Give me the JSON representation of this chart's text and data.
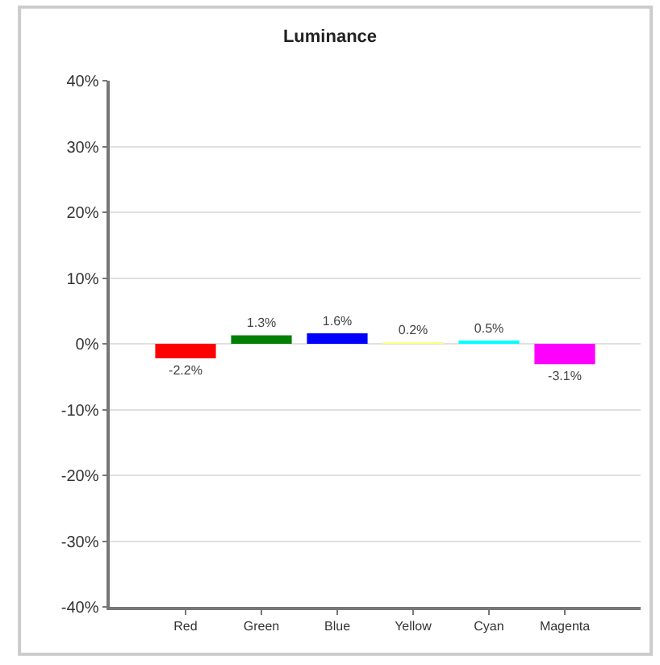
{
  "chart_data": {
    "type": "bar",
    "title": "Luminance",
    "categories": [
      "Red",
      "Green",
      "Blue",
      "Yellow",
      "Cyan",
      "Magenta"
    ],
    "values": [
      -2.2,
      1.3,
      1.6,
      0.2,
      0.5,
      -3.1
    ],
    "colors": [
      "#ff0000",
      "#008000",
      "#0000ff",
      "#ffff80",
      "#00ffff",
      "#ff00ff"
    ],
    "value_labels": [
      "-2.2%",
      "1.3%",
      "1.6%",
      "0.2%",
      "0.5%",
      "-3.1%"
    ],
    "ylim": [
      -40,
      40
    ],
    "yticks": [
      {
        "value": -40,
        "label": "-40%"
      },
      {
        "value": -30,
        "label": "-30%"
      },
      {
        "value": -20,
        "label": "-20%"
      },
      {
        "value": -10,
        "label": "-10%"
      },
      {
        "value": 0,
        "label": "0%"
      },
      {
        "value": 10,
        "label": "10%"
      },
      {
        "value": 20,
        "label": "20%"
      },
      {
        "value": 30,
        "label": "30%"
      },
      {
        "value": 40,
        "label": "40%"
      }
    ],
    "grid": "y"
  }
}
